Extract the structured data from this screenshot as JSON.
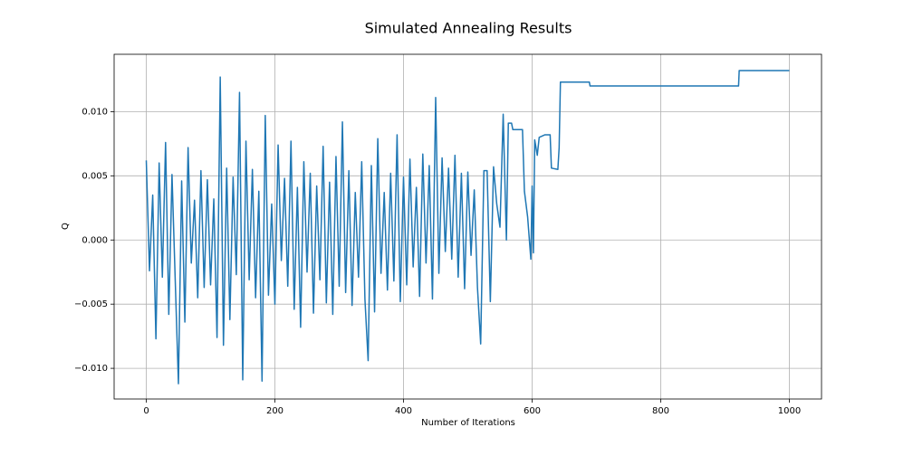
{
  "chart_data": {
    "type": "line",
    "title": "Simulated Annealing Results",
    "x_label": "Number of Iterations",
    "y_label": "Q",
    "color": "#1f77b4",
    "grid": true,
    "xlim": [
      -50,
      1050
    ],
    "xticks": [
      0,
      200,
      400,
      600,
      800,
      1000
    ],
    "ylim": [
      -0.01239,
      0.01447
    ],
    "yticks": [
      {
        "value": -0.01,
        "label": "−0.010"
      },
      {
        "value": -0.005,
        "label": "−0.005"
      },
      {
        "value": 0,
        "label": "0.000"
      },
      {
        "value": 0.005,
        "label": "0.005"
      },
      {
        "value": 0.01,
        "label": "0.010"
      }
    ],
    "x": [
      0,
      5,
      10,
      15,
      20,
      25,
      30,
      35,
      40,
      45,
      50,
      55,
      60,
      65,
      70,
      75,
      80,
      85,
      90,
      95,
      100,
      105,
      110,
      115,
      120,
      125,
      130,
      135,
      140,
      145,
      150,
      155,
      160,
      165,
      170,
      175,
      180,
      185,
      190,
      195,
      200,
      205,
      210,
      215,
      220,
      225,
      230,
      235,
      240,
      245,
      250,
      255,
      260,
      265,
      270,
      275,
      280,
      285,
      290,
      295,
      300,
      305,
      310,
      315,
      320,
      325,
      330,
      335,
      340,
      345,
      350,
      355,
      360,
      365,
      370,
      375,
      380,
      385,
      390,
      395,
      400,
      405,
      410,
      415,
      420,
      425,
      430,
      435,
      440,
      445,
      450,
      455,
      460,
      465,
      470,
      475,
      480,
      485,
      490,
      495,
      500,
      505,
      510,
      515,
      520,
      525,
      530,
      535,
      540,
      545,
      550,
      555,
      560,
      563,
      568,
      570,
      585,
      588,
      593,
      598,
      600,
      602,
      604,
      608,
      611,
      620,
      628,
      630,
      640,
      642,
      644,
      689,
      690,
      921,
      922,
      1000
    ],
    "values": [
      0.0062,
      -0.0024,
      0.0035,
      -0.0077,
      0.006,
      -0.0029,
      0.0076,
      -0.0058,
      0.0051,
      -0.0031,
      -0.0112,
      0.0046,
      -0.0064,
      0.0072,
      -0.0018,
      0.0031,
      -0.0045,
      0.0054,
      -0.0037,
      0.0047,
      -0.0035,
      0.0032,
      -0.0076,
      0.0127,
      -0.0082,
      0.0056,
      -0.0062,
      0.0049,
      -0.0027,
      0.0115,
      -0.0109,
      0.0077,
      -0.0031,
      0.0055,
      -0.0045,
      0.0038,
      -0.011,
      0.0097,
      -0.0043,
      0.0028,
      -0.005,
      0.0074,
      -0.0016,
      0.0048,
      -0.0036,
      0.0077,
      -0.0054,
      0.0041,
      -0.0068,
      0.0061,
      -0.0025,
      0.0052,
      -0.0057,
      0.0042,
      -0.0031,
      0.0073,
      -0.0049,
      0.0045,
      -0.0058,
      0.0065,
      -0.0036,
      0.0092,
      -0.0041,
      0.0054,
      -0.0051,
      0.0037,
      -0.0029,
      0.0061,
      -0.0046,
      -0.0094,
      0.0058,
      -0.0056,
      0.0079,
      -0.0026,
      0.0037,
      -0.0039,
      0.0052,
      -0.0032,
      0.0082,
      -0.0048,
      0.0049,
      -0.0035,
      0.0063,
      -0.0021,
      0.0041,
      -0.0044,
      0.0067,
      -0.0018,
      0.0058,
      -0.0046,
      0.0111,
      -0.0026,
      0.0064,
      -0.0009,
      0.0056,
      -0.0015,
      0.0066,
      -0.0029,
      0.0052,
      -0.0038,
      0.0053,
      -0.0012,
      0.0039,
      -0.0037,
      -0.0081,
      0.0054,
      0.0054,
      -0.0048,
      0.0057,
      0.0028,
      0.001,
      0.0098,
      0,
      0.0091,
      0.0091,
      0.0086,
      0.0086,
      0.0038,
      0.0018,
      -0.0015,
      0.0042,
      -0.001,
      0.0078,
      0.0066,
      0.008,
      0.0082,
      0.0082,
      0.0056,
      0.0055,
      0.0072,
      0.0123,
      0.0123,
      0.012,
      0.012,
      0.0132,
      0.0132
    ]
  }
}
